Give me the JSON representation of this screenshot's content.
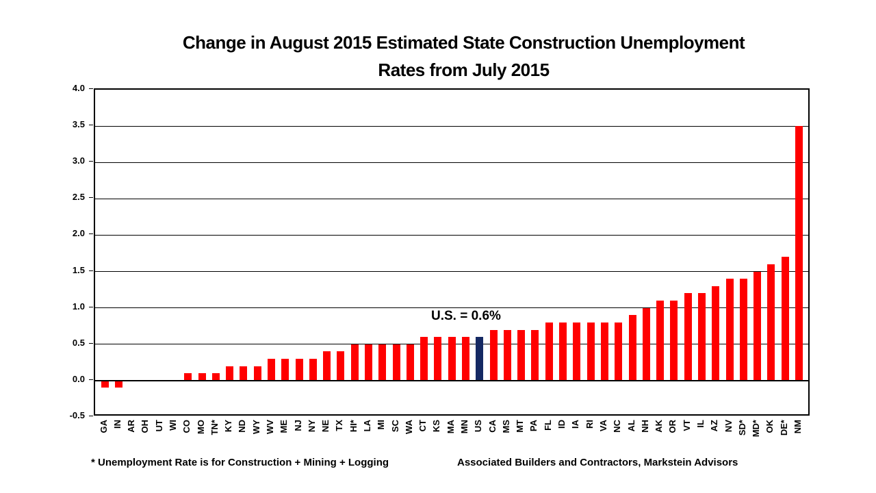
{
  "title": {
    "line1": "Change in August 2015 Estimated State Construction Unemployment",
    "line2": "Rates from July 2015"
  },
  "annotation_text": "U.S. = 0.6%",
  "footnote_left": "* Unemployment Rate is for Construction + Mining + Logging",
  "footnote_right": "Associated Builders and Contractors, Markstein Advisors",
  "chart_data": {
    "type": "bar",
    "title": "Change in August 2015 Estimated State Construction Unemployment Rates from July 2015",
    "categories": [
      "GA",
      "IN",
      "AR",
      "OH",
      "UT",
      "WI",
      "CO",
      "MO",
      "TN*",
      "KY",
      "ND",
      "WY",
      "WV",
      "ME",
      "NJ",
      "NY",
      "NE",
      "TX",
      "HI*",
      "LA",
      "MI",
      "SC",
      "WA",
      "CT",
      "KS",
      "MA",
      "MN",
      "US",
      "CA",
      "MS",
      "MT",
      "PA",
      "FL",
      "ID",
      "IA",
      "RI",
      "VA",
      "NC",
      "AL",
      "NH",
      "AK",
      "OR",
      "VT",
      "IL",
      "AZ",
      "NV",
      "SD*",
      "MD*",
      "OK",
      "DE*",
      "NM"
    ],
    "values": [
      -0.1,
      -0.1,
      0,
      0,
      0,
      0,
      0.1,
      0.1,
      0.1,
      0.2,
      0.2,
      0.2,
      0.3,
      0.3,
      0.3,
      0.3,
      0.4,
      0.4,
      0.5,
      0.5,
      0.5,
      0.5,
      0.5,
      0.6,
      0.6,
      0.6,
      0.6,
      0.6,
      0.7,
      0.7,
      0.7,
      0.7,
      0.8,
      0.8,
      0.8,
      0.8,
      0.8,
      0.8,
      0.9,
      1.0,
      1.1,
      1.1,
      1.2,
      1.2,
      1.3,
      1.4,
      1.4,
      1.5,
      1.6,
      1.7,
      3.5
    ],
    "xlabel": "",
    "ylabel": "",
    "ylim": [
      -0.5,
      4.0
    ],
    "ytick_step": 0.5,
    "ytick_labels": [
      "4.0",
      "3.5",
      "3.0",
      "2.5",
      "2.0",
      "1.5",
      "1.0",
      "0.5",
      "0.0",
      "-0.5"
    ],
    "grid": true,
    "x_labels_rotated": true,
    "legend": "none",
    "bar_color": "#FF0000",
    "highlight_category": "US",
    "highlight_color": "#152963",
    "annotation": {
      "text": "U.S. = 0.6%",
      "target": "US"
    }
  }
}
